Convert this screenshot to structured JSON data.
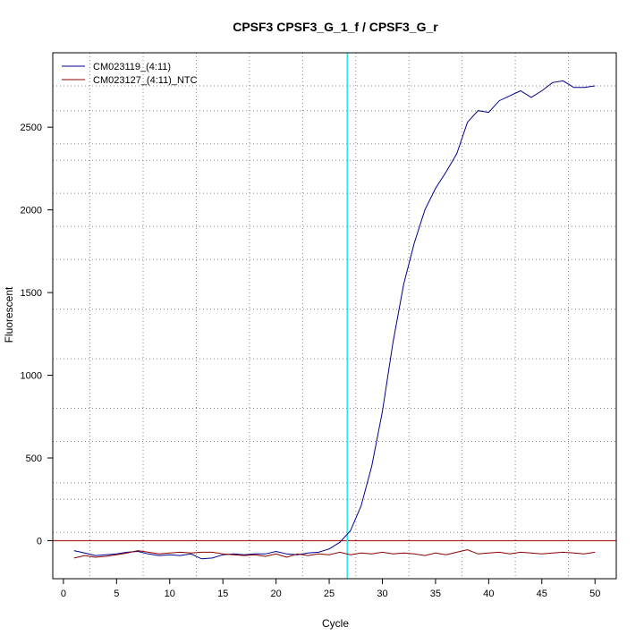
{
  "chart_data": {
    "type": "line",
    "title": "CPSF3  CPSF3_G_1_f / CPSF3_G_r",
    "xlabel": "Cycle",
    "ylabel": "Fluorescent",
    "xlim": [
      -1,
      52
    ],
    "ylim": [
      -230,
      2950
    ],
    "x_ticks": [
      0,
      5,
      10,
      15,
      20,
      25,
      30,
      35,
      40,
      45,
      50
    ],
    "y_ticks": [
      0,
      500,
      1000,
      1500,
      2000,
      2500
    ],
    "x_grid": [
      2.5,
      7.5,
      12.5,
      17.5,
      22.5,
      27.5,
      32.5,
      37.5,
      42.5,
      47.5
    ],
    "y_grid": [
      -250,
      50,
      250,
      350,
      600,
      800,
      1100,
      1400,
      1700,
      1900,
      2100,
      2300,
      2400,
      2600,
      2750
    ],
    "grid": true,
    "legend_position": "top-left",
    "threshold": {
      "value": 0,
      "color": "#b22222"
    },
    "cq_line": {
      "x": 26.7,
      "color": "#2ee6e6"
    },
    "x": [
      1,
      2,
      3,
      4,
      5,
      6,
      7,
      8,
      9,
      10,
      11,
      12,
      13,
      14,
      15,
      16,
      17,
      18,
      19,
      20,
      21,
      22,
      23,
      24,
      25,
      26,
      27,
      28,
      29,
      30,
      31,
      32,
      33,
      34,
      35,
      36,
      37,
      38,
      39,
      40,
      41,
      42,
      43,
      44,
      45,
      46,
      47,
      48,
      49,
      50
    ],
    "series": [
      {
        "name": "CM023119_(4:11)",
        "color": "#00008b",
        "values": [
          -60,
          -75,
          -90,
          -85,
          -80,
          -70,
          -65,
          -80,
          -90,
          -85,
          -90,
          -80,
          -110,
          -105,
          -85,
          -80,
          -85,
          -80,
          -80,
          -65,
          -80,
          -85,
          -75,
          -70,
          -50,
          -10,
          60,
          210,
          450,
          780,
          1200,
          1550,
          1800,
          2000,
          2130,
          2230,
          2340,
          2530,
          2600,
          2590,
          2660,
          2690,
          2720,
          2680,
          2720,
          2770,
          2780,
          2740,
          2740,
          2750
        ]
      },
      {
        "name": "CM023127_(4:11)_NTC",
        "color": "#8b0000",
        "values": [
          -105,
          -90,
          -100,
          -95,
          -85,
          -75,
          -60,
          -70,
          -80,
          -75,
          -70,
          -75,
          -70,
          -70,
          -80,
          -85,
          -90,
          -85,
          -95,
          -80,
          -100,
          -80,
          -90,
          -80,
          -85,
          -70,
          -85,
          -75,
          -80,
          -70,
          -80,
          -75,
          -80,
          -90,
          -75,
          -85,
          -70,
          -55,
          -80,
          -75,
          -70,
          -80,
          -70,
          -75,
          -80,
          -75,
          -70,
          -75,
          -80,
          -70
        ]
      }
    ]
  }
}
